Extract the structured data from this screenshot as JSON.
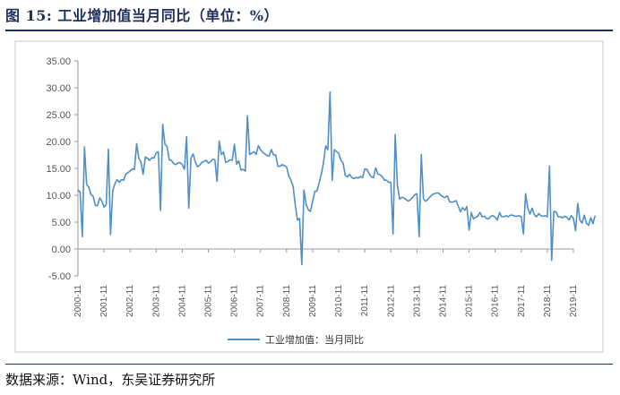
{
  "header": {
    "title": "图 15:  工业增加值当月同比（单位：%）"
  },
  "footer": {
    "source": "数据来源：Wind，东吴证券研究所"
  },
  "chart_data": {
    "type": "line",
    "title": "",
    "xlabel": "",
    "ylabel": "",
    "ylim": [
      -5,
      35
    ],
    "y_ticks": [
      "35.00",
      "30.00",
      "25.00",
      "20.00",
      "15.00",
      "10.00",
      "5.00",
      "0.00",
      "-5.00"
    ],
    "x_ticks": [
      "2000-11",
      "2001-11",
      "2002-11",
      "2003-11",
      "2004-11",
      "2005-11",
      "2006-11",
      "2007-11",
      "2008-11",
      "2009-11",
      "2010-11",
      "2011-11",
      "2012-11",
      "2013-11",
      "2014-11",
      "2015-11",
      "2016-11",
      "2017-11",
      "2018-11",
      "2019-11"
    ],
    "grid": false,
    "legend_position": "bottom",
    "line_color": "#4f8fc6",
    "series": [
      {
        "name": "工业增加值：当月同比",
        "x_start": "2000-11",
        "frequency": "monthly",
        "values": [
          11.0,
          10.6,
          2.3,
          19.0,
          12.0,
          11.5,
          10.1,
          9.8,
          8.1,
          8.1,
          9.5,
          8.9,
          7.8,
          8.2,
          18.6,
          2.7,
          10.9,
          12.1,
          12.9,
          12.4,
          12.9,
          12.8,
          13.9,
          14.2,
          14.5,
          14.9,
          14.8,
          19.6,
          16.9,
          16.2,
          13.9,
          17.1,
          16.9,
          16.5,
          17.0,
          16.9,
          17.9,
          18.1,
          7.2,
          23.2,
          19.5,
          19.1,
          16.6,
          16.5,
          15.9,
          15.7,
          16.0,
          16.1,
          15.7,
          14.8,
          20.9,
          7.6,
          16.9,
          17.7,
          16.2,
          15.3,
          15.6,
          16.1,
          16.3,
          16.5,
          16.0,
          16.2,
          16.7,
          16.6,
          12.6,
          20.1,
          17.6,
          18.0,
          16.1,
          16.3,
          16.6,
          16.5,
          19.5,
          15.8,
          16.4,
          14.7,
          14.8,
          14.5,
          24.8,
          17.6,
          17.8,
          18.1,
          17.6,
          19.2,
          18.5,
          18.0,
          17.7,
          17.4,
          17.3,
          18.5,
          17.5,
          17.5,
          15.4,
          15.4,
          15.7,
          15.5,
          15.3,
          13.6,
          12.8,
          11.7,
          8.2,
          5.4,
          5.7,
          -2.9,
          11.0,
          8.3,
          7.3,
          7.0,
          8.9,
          10.7,
          10.8,
          12.3,
          13.9,
          16.1,
          19.2,
          18.5,
          29.2,
          12.8,
          18.5,
          18.1,
          17.8,
          16.5,
          16.0,
          13.7,
          13.4,
          13.9,
          13.3,
          13.1,
          13.3,
          13.2,
          13.5,
          13.3,
          14.9,
          14.8,
          14.0,
          13.4,
          13.3,
          15.1,
          14.0,
          13.8,
          13.5,
          12.8,
          12.8,
          12.4,
          12.4,
          2.8,
          21.3,
          11.9,
          9.3,
          9.6,
          9.5,
          9.2,
          8.9,
          9.2,
          9.6,
          10.1,
          10.3,
          2.3,
          17.6,
          9.3,
          8.9,
          9.2,
          9.7,
          10.1,
          10.3,
          10.4,
          10.4,
          10.0,
          9.7,
          9.6,
          9.9,
          8.8,
          8.7,
          8.8,
          9.0,
          8.0,
          6.9,
          7.7,
          7.2,
          7.9,
          3.5,
          6.8,
          5.6,
          5.9,
          6.1,
          6.8,
          6.0,
          6.1,
          5.7,
          5.6,
          6.1,
          6.2,
          5.9,
          5.4,
          6.8,
          6.0,
          6.0,
          6.2,
          6.0,
          6.3,
          6.3,
          6.1,
          6.1,
          6.2,
          6.0,
          2.8,
          10.3,
          7.6,
          6.5,
          7.6,
          6.4,
          6.0,
          6.6,
          6.2,
          6.1,
          6.2,
          6.0,
          15.4,
          -2.1,
          7.0,
          6.9,
          6.0,
          6.0,
          5.8,
          6.1,
          5.9,
          5.4,
          6.2,
          5.7,
          3.4,
          8.5,
          5.4,
          4.8,
          6.3,
          4.8,
          4.4,
          5.8,
          4.7,
          6.2
        ]
      }
    ]
  }
}
